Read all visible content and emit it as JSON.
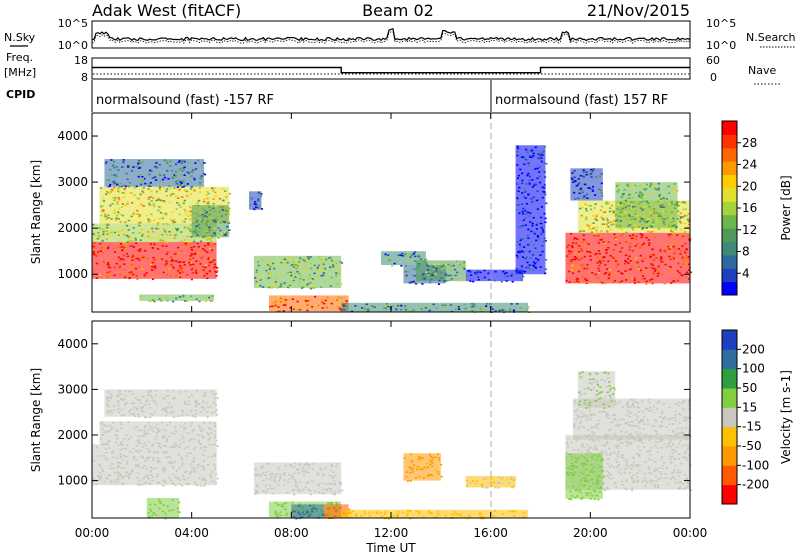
{
  "header": {
    "radar": "Adak West (fitACF)",
    "beam": "Beam 02",
    "date": "21/Nov/2015"
  },
  "panels": {
    "sky_label": "N.Sky",
    "search_label": "N.Search",
    "sky_ticks": [
      "10^5",
      "10^0"
    ],
    "search_ticks": [
      "10^5",
      "10^0"
    ],
    "freq_label_line1": "Freq.",
    "freq_label_line2": "[MHz]",
    "freq_ticks": [
      "18",
      "8"
    ],
    "nave_label": "Nave",
    "nave_ticks": [
      "60",
      "0"
    ],
    "cpid_label": "CPID",
    "cpid_programs": [
      {
        "label": "normalsound (fast) -157 RF",
        "start_hour": 0,
        "end_hour": 16
      },
      {
        "label": "normalsound (fast) 157 RF",
        "start_hour": 16,
        "end_hour": 24
      }
    ]
  },
  "power_scale": {
    "title": "Power [dB]",
    "ticks": [
      "28",
      "24",
      "20",
      "16",
      "12",
      "8",
      "4"
    ],
    "colors": [
      "#0000ff",
      "#1f3fbf",
      "#2f6a9c",
      "#3d8a78",
      "#4f9a5a",
      "#6bb84a",
      "#a6d23a",
      "#e0e030",
      "#ffcc00",
      "#ff9900",
      "#ff6600",
      "#ff3300",
      "#ff0000"
    ]
  },
  "velocity_scale": {
    "title": "Velocity [m s-1]",
    "ticks": [
      "200",
      "100",
      "50",
      "15",
      "-15",
      "-50",
      "-100",
      "-200"
    ],
    "colors": [
      "#ff0000",
      "#ff5a00",
      "#ff9900",
      "#ffc000",
      "#c8c8c0",
      "#7fcf3f",
      "#2f9e3f",
      "#2f6f9f",
      "#1f3fbf"
    ]
  },
  "axes": {
    "xlabel": "Time UT",
    "ylabel": "Slant Range [km]",
    "x_ticks": [
      "00:00",
      "04:00",
      "08:00",
      "12:00",
      "16:00",
      "20:00",
      "00:00"
    ],
    "y_ticks": [
      "4000",
      "3000",
      "2000",
      "1000"
    ]
  },
  "chart_data": {
    "type": "heatmap",
    "x_range_hours": [
      0,
      24
    ],
    "y_range_km": [
      180,
      4500
    ],
    "frequency_mhz": [
      {
        "start_hour": 0,
        "end_hour": 10,
        "value": 13.5
      },
      {
        "start_hour": 10,
        "end_hour": 18,
        "value": 11
      },
      {
        "start_hour": 18,
        "end_hour": 24,
        "value": 13.5
      }
    ],
    "power_regions_db": [
      {
        "t0": 0.0,
        "t1": 5.0,
        "r0": 900,
        "r1": 1700,
        "value": 28
      },
      {
        "t0": 0.0,
        "t1": 5.0,
        "r0": 1700,
        "r1": 2100,
        "value": 16
      },
      {
        "t0": 0.3,
        "t1": 5.5,
        "r0": 2100,
        "r1": 2900,
        "value": 18
      },
      {
        "t0": 0.5,
        "t1": 4.5,
        "r0": 2900,
        "r1": 3500,
        "value": 8
      },
      {
        "t0": 4.0,
        "t1": 5.5,
        "r0": 1800,
        "r1": 2500,
        "value": 12
      },
      {
        "t0": 6.3,
        "t1": 6.8,
        "r0": 2400,
        "r1": 2800,
        "value": 6
      },
      {
        "t0": 1.9,
        "t1": 4.9,
        "r0": 420,
        "r1": 560,
        "value": 14
      },
      {
        "t0": 6.5,
        "t1": 10.0,
        "r0": 700,
        "r1": 1400,
        "value": 14
      },
      {
        "t0": 7.1,
        "t1": 10.3,
        "r0": 200,
        "r1": 540,
        "value": 24
      },
      {
        "t0": 11.6,
        "t1": 13.4,
        "r0": 1200,
        "r1": 1500,
        "value": 10
      },
      {
        "t0": 12.5,
        "t1": 14.2,
        "r0": 800,
        "r1": 1200,
        "value": 8
      },
      {
        "t0": 13.0,
        "t1": 15.0,
        "r0": 850,
        "r1": 1300,
        "value": 12
      },
      {
        "t0": 15.0,
        "t1": 17.3,
        "r0": 850,
        "r1": 1100,
        "value": 4
      },
      {
        "t0": 10.0,
        "t1": 17.5,
        "r0": 180,
        "r1": 380,
        "value": 10
      },
      {
        "t0": 17.0,
        "t1": 18.2,
        "r0": 1000,
        "r1": 3800,
        "value": 4
      },
      {
        "t0": 19.0,
        "t1": 24.0,
        "r0": 800,
        "r1": 1900,
        "value": 28
      },
      {
        "t0": 19.5,
        "t1": 24.0,
        "r0": 1900,
        "r1": 2600,
        "value": 18
      },
      {
        "t0": 19.2,
        "t1": 20.5,
        "r0": 2600,
        "r1": 3300,
        "value": 6
      },
      {
        "t0": 21.0,
        "t1": 23.5,
        "r0": 2000,
        "r1": 3000,
        "value": 14
      }
    ],
    "velocity_regions_ms": [
      {
        "t0": 0.0,
        "t1": 5.0,
        "r0": 900,
        "r1": 1800,
        "value": 0
      },
      {
        "t0": 0.3,
        "t1": 5.0,
        "r0": 1800,
        "r1": 2300,
        "value": 0
      },
      {
        "t0": 0.5,
        "t1": 5.0,
        "r0": 2400,
        "r1": 3000,
        "value": 0
      },
      {
        "t0": 2.2,
        "t1": 3.5,
        "r0": 180,
        "r1": 620,
        "value": 20
      },
      {
        "t0": 6.5,
        "t1": 10.0,
        "r0": 700,
        "r1": 1400,
        "value": 0
      },
      {
        "t0": 7.1,
        "t1": 10.0,
        "r0": 200,
        "r1": 540,
        "value": 30
      },
      {
        "t0": 8.0,
        "t1": 9.3,
        "r0": 180,
        "r1": 480,
        "value": 150
      },
      {
        "t0": 9.3,
        "t1": 10.3,
        "r0": 180,
        "r1": 480,
        "value": -100
      },
      {
        "t0": 12.5,
        "t1": 14.0,
        "r0": 1000,
        "r1": 1600,
        "value": -60
      },
      {
        "t0": 10.0,
        "t1": 17.5,
        "r0": 180,
        "r1": 360,
        "value": -30
      },
      {
        "t0": 15.0,
        "t1": 17.0,
        "r0": 850,
        "r1": 1100,
        "value": -15
      },
      {
        "t0": 19.0,
        "t1": 24.0,
        "r0": 800,
        "r1": 2000,
        "value": 0
      },
      {
        "t0": 19.3,
        "t1": 24.0,
        "r0": 1900,
        "r1": 2800,
        "value": 0
      },
      {
        "t0": 19.0,
        "t1": 20.5,
        "r0": 600,
        "r1": 1600,
        "value": 30
      },
      {
        "t0": 19.5,
        "t1": 21.0,
        "r0": 2600,
        "r1": 3400,
        "value": 15
      }
    ]
  }
}
